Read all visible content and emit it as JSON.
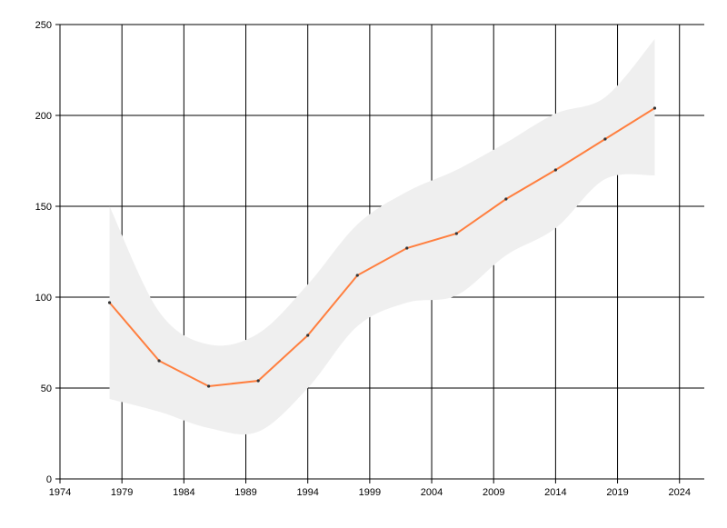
{
  "chart_data": {
    "type": "line",
    "title": "",
    "xlabel": "",
    "ylabel": "",
    "xlim": [
      1974,
      2026
    ],
    "ylim": [
      0,
      250
    ],
    "x_ticks": [
      1974,
      1979,
      1984,
      1989,
      1994,
      1999,
      2004,
      2009,
      2014,
      2019,
      2024
    ],
    "y_ticks": [
      0,
      50,
      100,
      150,
      200,
      250
    ],
    "x_tick_labels": [
      "1974",
      "1979",
      "1984",
      "1989",
      "1994",
      "1999",
      "2004",
      "2009",
      "2014",
      "2019",
      "2024"
    ],
    "y_tick_labels": [
      "0",
      "50",
      "100",
      "150",
      "200",
      "250"
    ],
    "grid": true,
    "legend": "none",
    "series": [
      {
        "x": [
          1978,
          1982,
          1986,
          1990,
          1994,
          1998,
          2002,
          2006,
          2010,
          2014,
          2018,
          2022
        ],
        "y": [
          97,
          65,
          51,
          54,
          79,
          112,
          127,
          135,
          154,
          170,
          187,
          204
        ],
        "color": "#ff7f3f"
      }
    ],
    "band": {
      "x": [
        1978,
        1982,
        1986,
        1990,
        1994,
        1998,
        2002,
        2006,
        2010,
        2014,
        2018,
        2022
      ],
      "upper": [
        150,
        92,
        74,
        80,
        107,
        140,
        158,
        170,
        185,
        201,
        210,
        242
      ],
      "lower": [
        44,
        37,
        28,
        26,
        50,
        84,
        97,
        101,
        123,
        138,
        165,
        167
      ],
      "color": "#efefef"
    },
    "colors": {
      "grid": "#000000",
      "axis": "#000000",
      "line": "#ff7f3f",
      "band": "#efefef",
      "point": "#333333"
    }
  }
}
